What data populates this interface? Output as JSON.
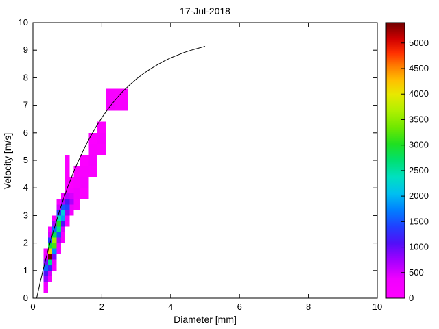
{
  "chart_data": {
    "type": "heatmap",
    "title": "17-Jul-2018",
    "xlabel": "Diameter [mm]",
    "ylabel": "Velocity [m/s]",
    "xlim": [
      0,
      10
    ],
    "ylim": [
      0,
      10
    ],
    "xticks": [
      0,
      2,
      4,
      6,
      8,
      10
    ],
    "yticks": [
      0,
      1,
      2,
      3,
      4,
      5,
      6,
      7,
      8,
      9,
      10
    ],
    "grid": false,
    "background": "#FFFFFF",
    "axis_color": "#000000",
    "colorbar": {
      "min": 0,
      "max": 5400,
      "ticks": [
        0,
        500,
        1000,
        1500,
        2000,
        2500,
        3000,
        3500,
        4000,
        4500,
        5000
      ],
      "position": "right"
    },
    "colormap": [
      {
        "t": 0.0,
        "c": "#FF00FF"
      },
      {
        "t": 0.07,
        "c": "#F000FF"
      },
      {
        "t": 0.14,
        "c": "#A000FF"
      },
      {
        "t": 0.2,
        "c": "#5010F8"
      },
      {
        "t": 0.26,
        "c": "#2040FF"
      },
      {
        "t": 0.32,
        "c": "#0080FF"
      },
      {
        "t": 0.38,
        "c": "#00C0F0"
      },
      {
        "t": 0.44,
        "c": "#00E0C0"
      },
      {
        "t": 0.5,
        "c": "#00E070"
      },
      {
        "t": 0.56,
        "c": "#20E020"
      },
      {
        "t": 0.62,
        "c": "#70E800"
      },
      {
        "t": 0.68,
        "c": "#B0F000"
      },
      {
        "t": 0.74,
        "c": "#E8E800"
      },
      {
        "t": 0.79,
        "c": "#FFC000"
      },
      {
        "t": 0.84,
        "c": "#FF8000"
      },
      {
        "t": 0.89,
        "c": "#FF3000"
      },
      {
        "t": 0.94,
        "c": "#D00000"
      },
      {
        "t": 1.0,
        "c": "#700000"
      }
    ],
    "cells_format": [
      "diameter_min_mm",
      "diameter_max_mm",
      "velocity_min_ms",
      "velocity_max_ms",
      "count"
    ],
    "cells": [
      [
        0.312,
        0.437,
        0.2,
        0.4,
        200
      ],
      [
        0.312,
        0.437,
        0.4,
        0.6,
        350
      ],
      [
        0.312,
        0.437,
        0.6,
        0.8,
        800
      ],
      [
        0.312,
        0.437,
        0.8,
        1.0,
        1100
      ],
      [
        0.312,
        0.437,
        1.0,
        1.2,
        1600
      ],
      [
        0.312,
        0.437,
        1.2,
        1.4,
        900
      ],
      [
        0.312,
        0.437,
        1.4,
        1.6,
        400
      ],
      [
        0.312,
        0.437,
        1.6,
        1.8,
        150
      ],
      [
        0.437,
        0.562,
        0.6,
        0.8,
        250
      ],
      [
        0.437,
        0.562,
        0.8,
        1.0,
        500
      ],
      [
        0.437,
        0.562,
        1.0,
        1.2,
        1200
      ],
      [
        0.437,
        0.562,
        1.2,
        1.4,
        2600
      ],
      [
        0.437,
        0.562,
        1.4,
        1.6,
        5400
      ],
      [
        0.437,
        0.562,
        1.6,
        1.8,
        4100
      ],
      [
        0.437,
        0.562,
        1.8,
        2.0,
        2900
      ],
      [
        0.437,
        0.562,
        2.0,
        2.2,
        1400
      ],
      [
        0.437,
        0.562,
        2.2,
        2.4,
        500
      ],
      [
        0.437,
        0.562,
        2.4,
        2.6,
        150
      ],
      [
        0.562,
        0.687,
        1.0,
        1.2,
        200
      ],
      [
        0.562,
        0.687,
        1.2,
        1.4,
        400
      ],
      [
        0.562,
        0.687,
        1.4,
        1.6,
        900
      ],
      [
        0.562,
        0.687,
        1.6,
        1.8,
        1800
      ],
      [
        0.562,
        0.687,
        1.8,
        2.0,
        3200
      ],
      [
        0.562,
        0.687,
        2.0,
        2.2,
        3600
      ],
      [
        0.562,
        0.687,
        2.2,
        2.4,
        2800
      ],
      [
        0.562,
        0.687,
        2.4,
        2.6,
        1600
      ],
      [
        0.562,
        0.687,
        2.6,
        2.8,
        700
      ],
      [
        0.562,
        0.687,
        2.8,
        3.0,
        250
      ],
      [
        0.687,
        0.812,
        1.6,
        1.8,
        150
      ],
      [
        0.687,
        0.812,
        1.8,
        2.0,
        300
      ],
      [
        0.687,
        0.812,
        2.0,
        2.2,
        700
      ],
      [
        0.687,
        0.812,
        2.2,
        2.4,
        1500
      ],
      [
        0.687,
        0.812,
        2.4,
        2.6,
        2600
      ],
      [
        0.687,
        0.812,
        2.6,
        2.8,
        3000
      ],
      [
        0.687,
        0.812,
        2.8,
        3.0,
        2400
      ],
      [
        0.687,
        0.812,
        3.0,
        3.2,
        1300
      ],
      [
        0.687,
        0.812,
        3.2,
        3.4,
        500
      ],
      [
        0.687,
        0.812,
        3.4,
        3.6,
        150
      ],
      [
        0.812,
        0.937,
        2.0,
        2.4,
        200
      ],
      [
        0.812,
        0.937,
        2.4,
        2.6,
        500
      ],
      [
        0.812,
        0.937,
        2.6,
        2.8,
        1100
      ],
      [
        0.812,
        0.937,
        2.8,
        3.0,
        1900
      ],
      [
        0.812,
        0.937,
        3.0,
        3.2,
        2200
      ],
      [
        0.812,
        0.937,
        3.2,
        3.4,
        1500
      ],
      [
        0.812,
        0.937,
        3.4,
        3.6,
        700
      ],
      [
        0.812,
        0.937,
        3.6,
        3.8,
        250
      ],
      [
        0.937,
        1.062,
        2.6,
        2.8,
        150
      ],
      [
        0.937,
        1.062,
        2.8,
        3.0,
        350
      ],
      [
        0.937,
        1.062,
        3.0,
        3.2,
        800
      ],
      [
        0.937,
        1.062,
        3.2,
        3.4,
        1400
      ],
      [
        0.937,
        1.062,
        3.4,
        3.6,
        1100
      ],
      [
        0.937,
        1.062,
        3.6,
        3.8,
        600
      ],
      [
        0.937,
        1.062,
        3.8,
        4.0,
        250
      ],
      [
        0.937,
        1.062,
        4.0,
        4.4,
        120
      ],
      [
        0.937,
        1.062,
        4.4,
        4.8,
        90
      ],
      [
        0.937,
        1.062,
        4.8,
        5.2,
        100
      ],
      [
        1.062,
        1.187,
        3.0,
        3.2,
        150
      ],
      [
        1.062,
        1.187,
        3.2,
        3.4,
        400
      ],
      [
        1.062,
        1.187,
        3.4,
        3.6,
        700
      ],
      [
        1.062,
        1.187,
        3.6,
        3.8,
        500
      ],
      [
        1.062,
        1.187,
        3.8,
        4.0,
        250
      ],
      [
        1.062,
        1.187,
        4.0,
        4.4,
        120
      ],
      [
        1.187,
        1.375,
        3.2,
        3.6,
        200
      ],
      [
        1.187,
        1.375,
        3.6,
        4.0,
        350
      ],
      [
        1.187,
        1.375,
        4.0,
        4.4,
        200
      ],
      [
        1.187,
        1.375,
        4.4,
        4.8,
        100
      ],
      [
        1.375,
        1.625,
        3.6,
        4.0,
        120
      ],
      [
        1.375,
        1.625,
        4.0,
        4.4,
        250
      ],
      [
        1.375,
        1.625,
        4.4,
        4.8,
        180
      ],
      [
        1.375,
        1.625,
        4.8,
        5.2,
        90
      ],
      [
        1.625,
        1.875,
        4.4,
        4.8,
        150
      ],
      [
        1.625,
        1.875,
        4.8,
        5.2,
        220
      ],
      [
        1.625,
        1.875,
        5.2,
        5.6,
        160
      ],
      [
        1.625,
        1.875,
        5.6,
        6.0,
        90
      ],
      [
        1.875,
        2.125,
        5.2,
        5.6,
        130
      ],
      [
        1.875,
        2.125,
        5.6,
        6.0,
        180
      ],
      [
        1.875,
        2.125,
        6.0,
        6.4,
        80
      ],
      [
        2.125,
        2.375,
        6.8,
        7.2,
        300
      ],
      [
        2.125,
        2.375,
        7.2,
        7.6,
        180
      ],
      [
        2.375,
        2.75,
        6.8,
        7.2,
        200
      ],
      [
        2.375,
        2.75,
        7.2,
        7.6,
        120
      ]
    ],
    "curve": {
      "name": "terminal-fall-velocity-curve",
      "x": [
        0.11,
        0.2,
        0.3,
        0.4,
        0.5,
        0.6,
        0.7,
        0.8,
        0.9,
        1.0,
        1.2,
        1.4,
        1.6,
        1.8,
        2.0,
        2.2,
        2.4,
        2.6,
        2.8,
        3.0,
        3.2,
        3.4,
        3.6,
        3.8,
        4.0,
        4.2,
        4.4,
        4.6,
        4.8,
        5.0
      ],
      "y": [
        0.01,
        0.52,
        1.05,
        1.55,
        2.02,
        2.46,
        2.88,
        3.28,
        3.65,
        4.0,
        4.64,
        5.2,
        5.71,
        6.15,
        6.55,
        6.9,
        7.21,
        7.49,
        7.73,
        7.95,
        8.14,
        8.31,
        8.46,
        8.6,
        8.72,
        8.82,
        8.92,
        9.0,
        9.07,
        9.14
      ]
    }
  }
}
